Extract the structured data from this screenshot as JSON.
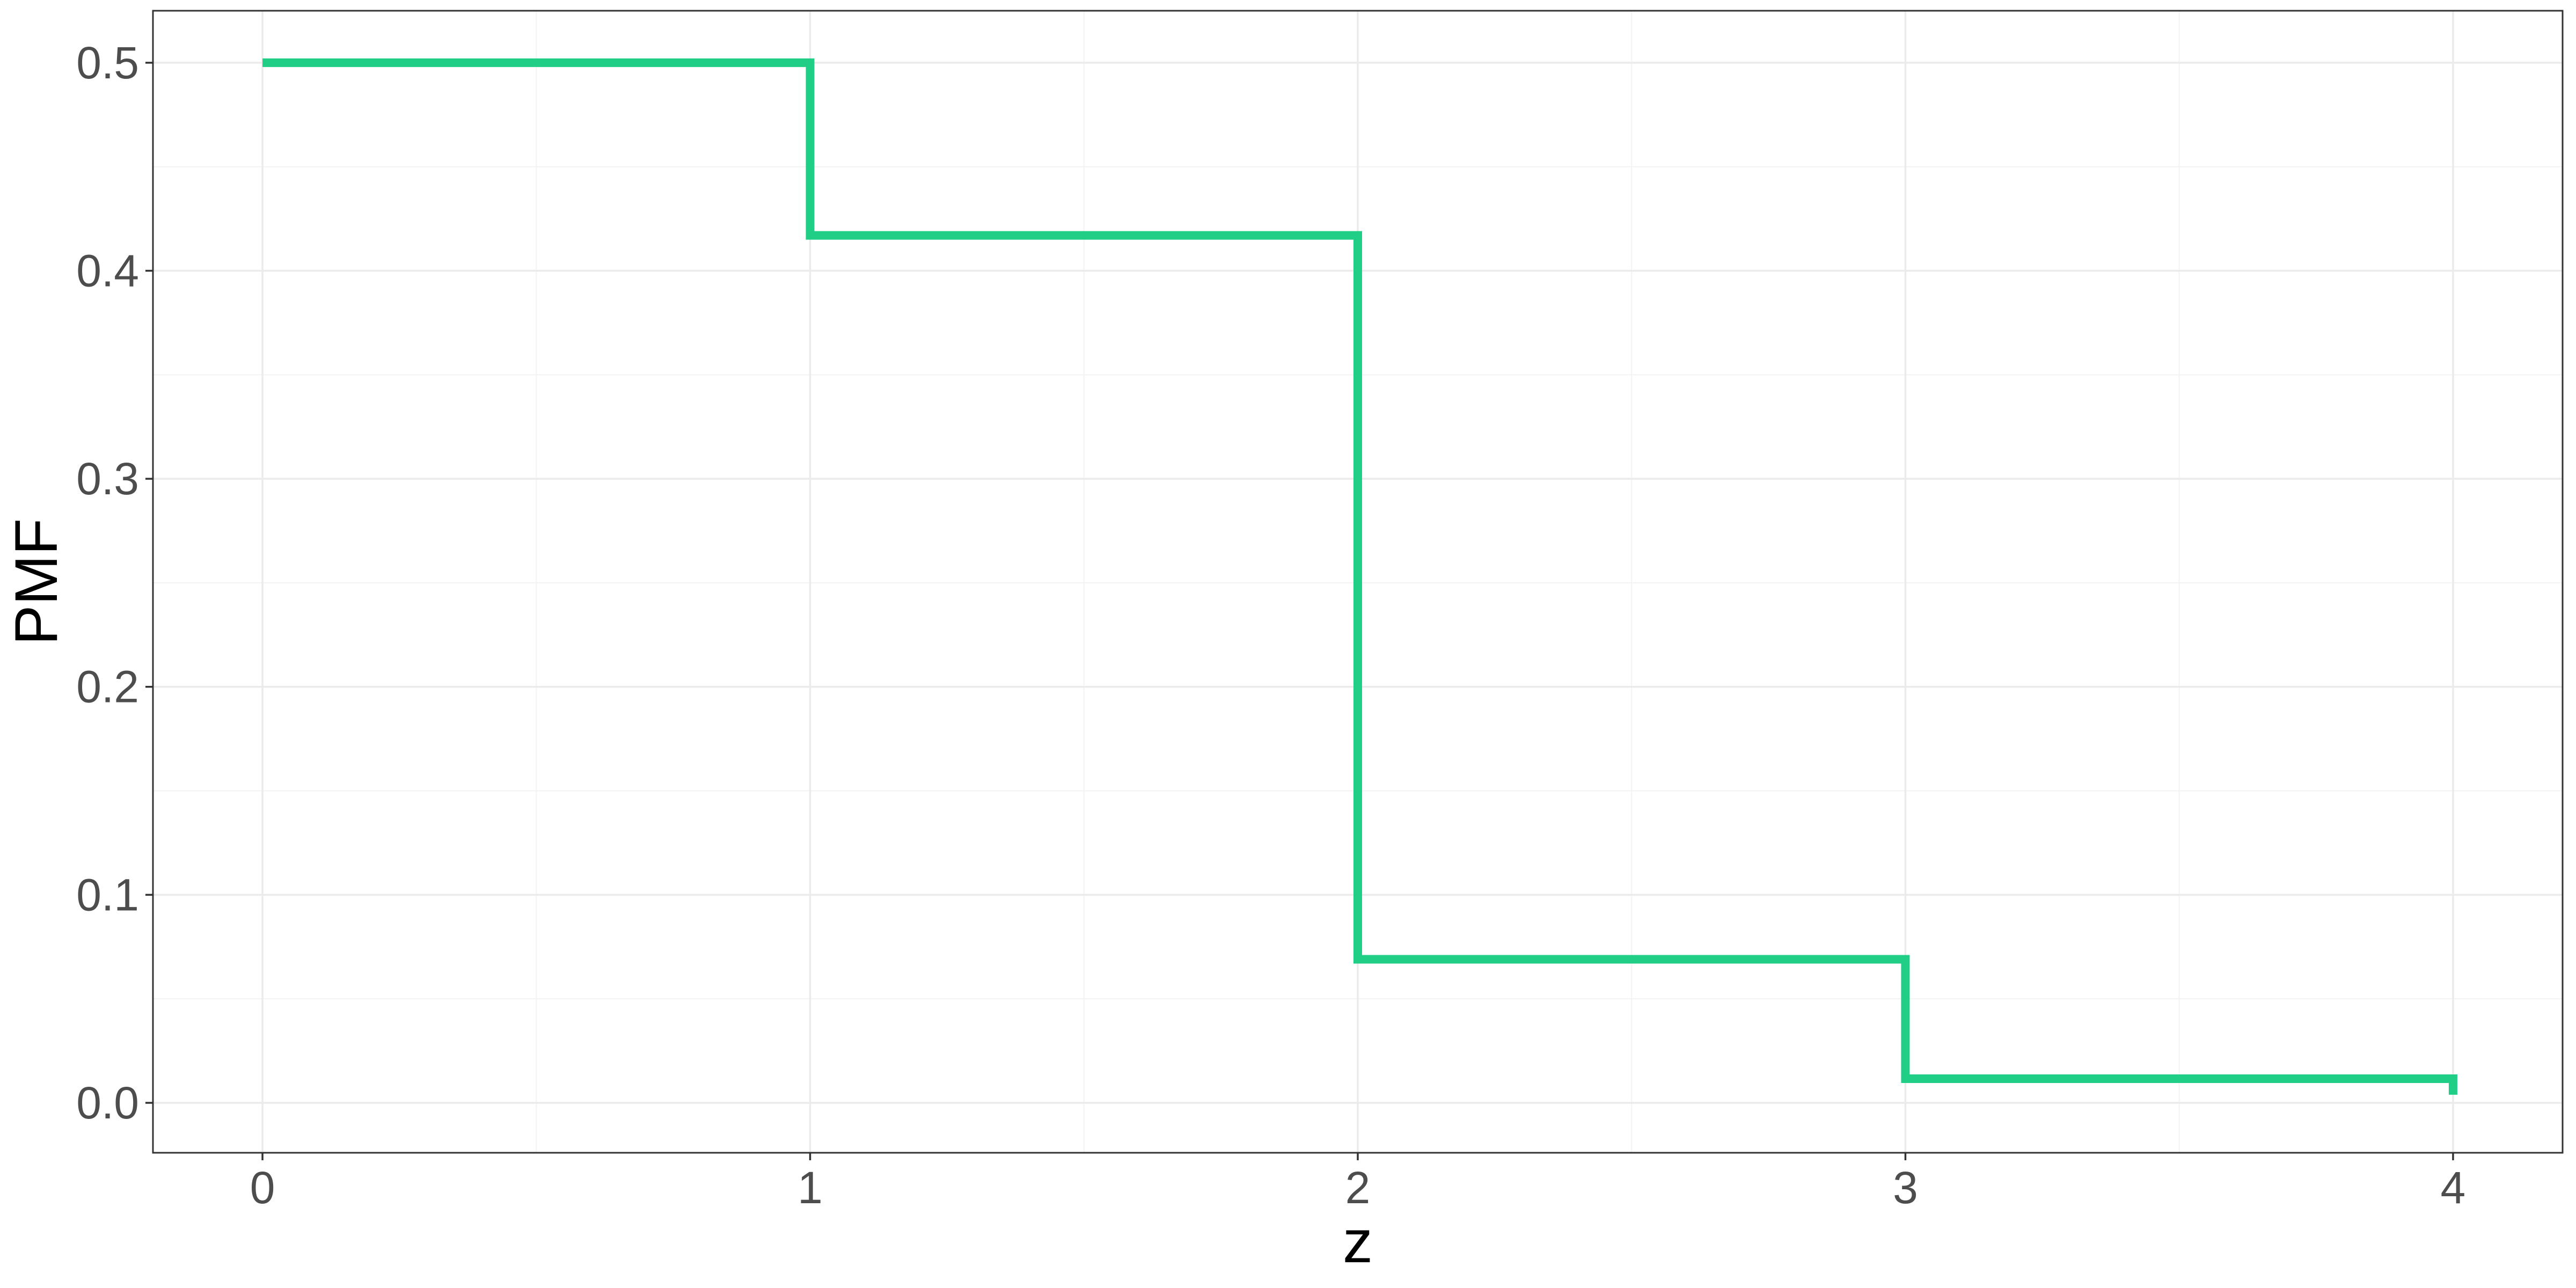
{
  "chart_data": {
    "type": "line",
    "step": "hv",
    "title": "",
    "xlabel": "z",
    "ylabel": "PMF",
    "xlim": [
      -0.2,
      4.2
    ],
    "ylim": [
      -0.024,
      0.525
    ],
    "x_ticks": [
      0,
      1,
      2,
      3,
      4
    ],
    "x_tick_labels": [
      "0",
      "1",
      "2",
      "3",
      "4"
    ],
    "y_ticks": [
      0.0,
      0.1,
      0.2,
      0.3,
      0.4,
      0.5
    ],
    "y_tick_labels": [
      "0.0",
      "0.1",
      "0.2",
      "0.3",
      "0.4",
      "0.5"
    ],
    "grid": true,
    "legend": "none",
    "series": [
      {
        "color": "#20CF85",
        "x": [
          0,
          1,
          2,
          3,
          4
        ],
        "y": [
          0.5,
          0.417,
          0.069,
          0.0116,
          0.0039
        ]
      }
    ]
  }
}
